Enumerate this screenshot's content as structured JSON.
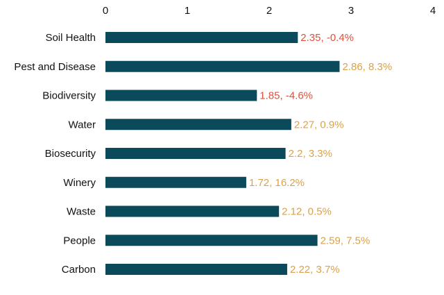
{
  "chart_data": {
    "type": "bar",
    "orientation": "horizontal",
    "title": "",
    "xlabel": "",
    "ylabel": "",
    "xlim": [
      0,
      4
    ],
    "x_ticks": [
      "0",
      "1",
      "2",
      "3",
      "4"
    ],
    "grid": false,
    "categories": [
      "Soil Health",
      "Pest and Disease",
      "Biodiversity",
      "Water",
      "Biosecurity",
      "Winery",
      "Waste",
      "People",
      "Carbon"
    ],
    "values": [
      2.35,
      2.86,
      1.85,
      2.27,
      2.2,
      1.72,
      2.12,
      2.59,
      2.22
    ],
    "changes": [
      -0.4,
      8.3,
      -4.6,
      0.9,
      3.3,
      16.2,
      0.5,
      7.5,
      3.7
    ],
    "data_labels": [
      "2.35, -0.4%",
      "2.86, 8.3%",
      "1.85, -4.6%",
      "2.27, 0.9%",
      "2.2, 3.3%",
      "1.72, 16.2%",
      "2.12, 0.5%",
      "2.59, 7.5%",
      "2.22, 3.7%"
    ],
    "colors": {
      "bar": "#0b4a5a",
      "label_positive": "#d9a24a",
      "label_negative": "#e0503c",
      "text": "#111111"
    }
  }
}
